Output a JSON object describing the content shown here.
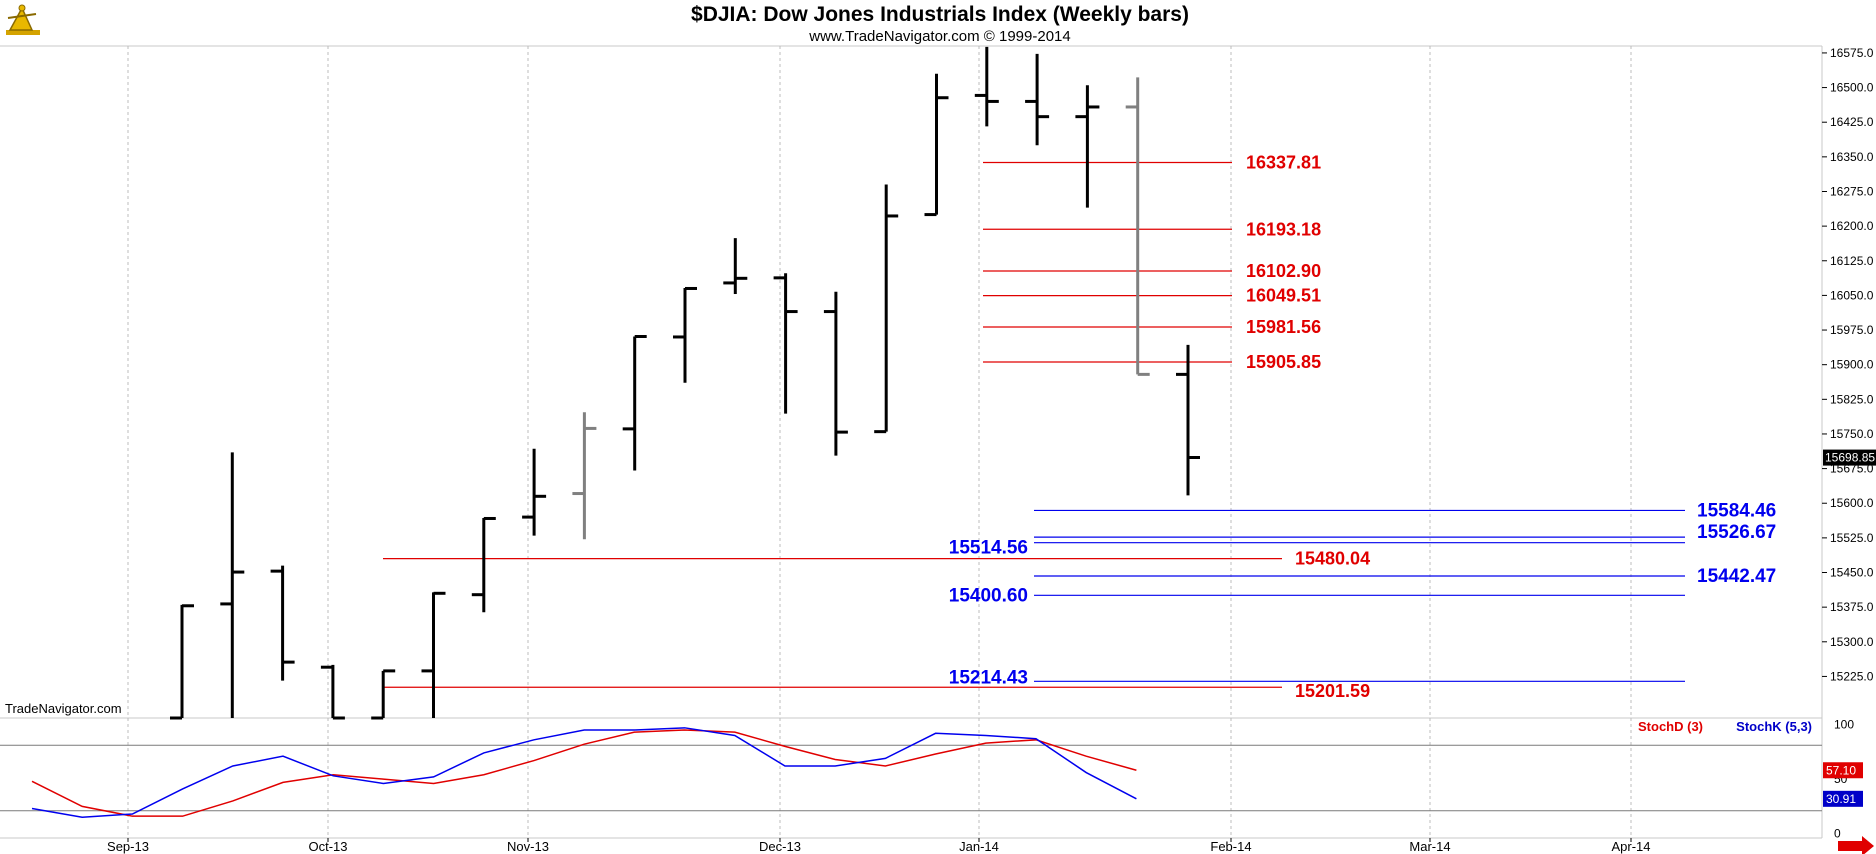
{
  "header": {
    "title": "$DJIA:  Dow Jones Industrials Index  (Weekly bars)",
    "subtitle": "www.TradeNavigator.com © 1999-2014"
  },
  "watermark": "TradeNavigator.com",
  "colors": {
    "red": "#e00000",
    "blue": "#0000ee",
    "black": "#000000",
    "grey": "#808080"
  },
  "chart_data": [
    {
      "type": "ohlc",
      "title": "$DJIA:  Dow Jones Industrials Index  (Weekly bars)",
      "ylim": [
        15135,
        16590
      ],
      "y_ticks": [
        "16575.0",
        "16500.0",
        "16425.0",
        "16350.0",
        "16275.0",
        "16200.0",
        "16125.0",
        "16050.0",
        "15975.0",
        "15900.0",
        "15825.0",
        "15750.0",
        "15675.0",
        "15600.0",
        "15525.0",
        "15450.0",
        "15375.0",
        "15300.0",
        "15225.0"
      ],
      "x_ticks": [
        "Sep-13",
        "Oct-13",
        "Nov-13",
        "Dec-13",
        "Jan-14",
        "Feb-14",
        "Mar-14",
        "Apr-14"
      ],
      "last_price": "15698.85",
      "bars": [
        {
          "x": "Sep-13 w3",
          "open": 15135,
          "high": 15380,
          "low": 15135,
          "close": 15378,
          "color": "black"
        },
        {
          "x": "Sep-13 w4",
          "open": 15382,
          "high": 15710,
          "low": 15135,
          "close": 15451,
          "color": "black"
        },
        {
          "x": "Sep-13 w5",
          "open": 15453,
          "high": 15465,
          "low": 15216,
          "close": 15256,
          "color": "black"
        },
        {
          "x": "Oct-13 w1",
          "open": 15245,
          "high": 15250,
          "low": 15135,
          "close": 15135,
          "color": "black"
        },
        {
          "x": "Oct-13 w2",
          "open": 15135,
          "high": 15237,
          "low": 15135,
          "close": 15237,
          "color": "black"
        },
        {
          "x": "Oct-13 w3",
          "open": 15237,
          "high": 15407,
          "low": 15135,
          "close": 15405,
          "color": "black"
        },
        {
          "x": "Oct-13 w4",
          "open": 15402,
          "high": 15568,
          "low": 15364,
          "close": 15567,
          "color": "black"
        },
        {
          "x": "Nov-13 w1",
          "open": 15570,
          "high": 15718,
          "low": 15530,
          "close": 15615,
          "color": "black"
        },
        {
          "x": "Nov-13 w2",
          "open": 15621,
          "high": 15797,
          "low": 15522,
          "close": 15762,
          "color": "grey"
        },
        {
          "x": "Nov-13 w3",
          "open": 15761,
          "high": 15961,
          "low": 15671,
          "close": 15961,
          "color": "black"
        },
        {
          "x": "Nov-13 w4",
          "open": 15960,
          "high": 16066,
          "low": 15861,
          "close": 16065,
          "color": "black"
        },
        {
          "x": "Dec-13 w1",
          "open": 16077,
          "high": 16174,
          "low": 16053,
          "close": 16087,
          "color": "black"
        },
        {
          "x": "Dec-13 w2",
          "open": 16088,
          "high": 16098,
          "low": 15794,
          "close": 16015,
          "color": "black"
        },
        {
          "x": "Dec-13 w3",
          "open": 16015,
          "high": 16058,
          "low": 15703,
          "close": 15754,
          "color": "black"
        },
        {
          "x": "Dec-13 w4",
          "open": 15755,
          "high": 16290,
          "low": 15755,
          "close": 16222,
          "color": "black"
        },
        {
          "x": "Dec-13 w5",
          "open": 16225,
          "high": 16530,
          "low": 16225,
          "close": 16478,
          "color": "black"
        },
        {
          "x": "Jan-14 w1",
          "open": 16483,
          "high": 16588,
          "low": 16416,
          "close": 16470,
          "color": "black"
        },
        {
          "x": "Jan-14 w2",
          "open": 16470,
          "high": 16573,
          "low": 16375,
          "close": 16437,
          "color": "black"
        },
        {
          "x": "Jan-14 w3",
          "open": 16437,
          "high": 16505,
          "low": 16240,
          "close": 16458,
          "color": "black"
        },
        {
          "x": "Jan-14 w4",
          "open": 16458,
          "high": 16522,
          "low": 15879,
          "close": 15879,
          "color": "grey"
        },
        {
          "x": "Jan-14 w5",
          "open": 15879,
          "high": 15943,
          "low": 15617,
          "close": 15699,
          "color": "black"
        }
      ],
      "levels": [
        {
          "value": 16337.81,
          "label": "16337.81",
          "color": "red"
        },
        {
          "value": 16193.18,
          "label": "16193.18",
          "color": "red"
        },
        {
          "value": 16102.9,
          "label": "16102.90",
          "color": "red"
        },
        {
          "value": 16049.51,
          "label": "16049.51",
          "color": "red"
        },
        {
          "value": 15981.56,
          "label": "15981.56",
          "color": "red"
        },
        {
          "value": 15905.85,
          "label": "15905.85",
          "color": "red"
        },
        {
          "value": 15584.46,
          "label": "15584.46",
          "color": "blue"
        },
        {
          "value": 15526.67,
          "label": "15526.67",
          "color": "blue"
        },
        {
          "value": 15514.56,
          "label": "15514.56",
          "color": "blue"
        },
        {
          "value": 15480.04,
          "label": "15480.04",
          "color": "red"
        },
        {
          "value": 15442.47,
          "label": "15442.47",
          "color": "blue"
        },
        {
          "value": 15400.6,
          "label": "15400.60",
          "color": "blue"
        },
        {
          "value": 15214.43,
          "label": "15214.43",
          "color": "blue"
        },
        {
          "value": 15201.59,
          "label": "15201.59",
          "color": "red"
        }
      ]
    },
    {
      "type": "line",
      "ylim": [
        -5,
        105
      ],
      "y_ticks": [
        "100",
        "50",
        "0"
      ],
      "guide_lines": [
        80,
        20
      ],
      "series": [
        {
          "name": "StochD (3)",
          "color": "red",
          "values": [
            47,
            24,
            15,
            15,
            29,
            46,
            53,
            49,
            45,
            53,
            66,
            81,
            92,
            94,
            92,
            79,
            67,
            61,
            72,
            82,
            85,
            70,
            57.1
          ],
          "last": "57.10"
        },
        {
          "name": "StochK (5,3)",
          "color": "blue",
          "values": [
            22,
            14,
            17,
            40,
            61,
            70,
            52,
            45,
            51,
            73,
            85,
            94,
            94,
            96,
            89,
            61,
            61,
            68,
            91,
            89,
            86,
            55,
            30.91
          ],
          "last": "30.91"
        }
      ]
    }
  ]
}
